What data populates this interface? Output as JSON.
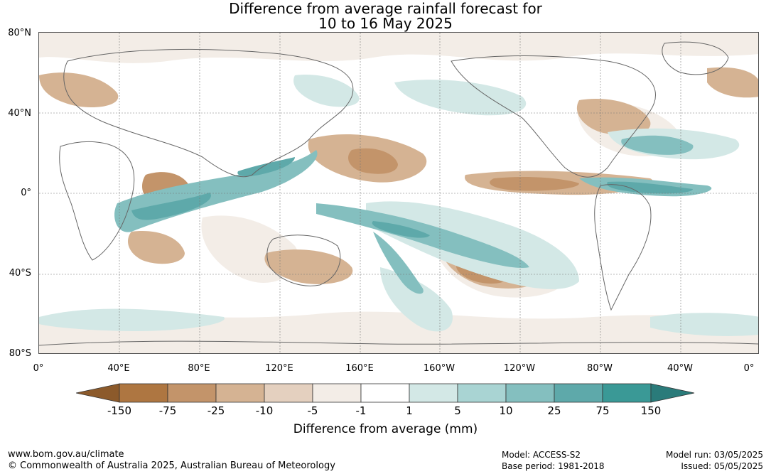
{
  "title_line1": "Difference from average rainfall forecast for",
  "title_line2": "10 to 16 May 2025",
  "lat_labels": [
    "80°N",
    "40°N",
    "0°",
    "40°S",
    "80°S"
  ],
  "lon_labels": [
    "0°",
    "40°E",
    "80°E",
    "120°E",
    "160°E",
    "160°W",
    "120°W",
    "80°W",
    "40°W",
    "0°"
  ],
  "legend": {
    "title": "Difference from average (mm)",
    "ticks": [
      "-150",
      "-75",
      "-25",
      "-10",
      "-5",
      "-1",
      "1",
      "5",
      "10",
      "25",
      "75",
      "150"
    ],
    "colors": [
      "#8c5a2b",
      "#ae7641",
      "#c3946a",
      "#d5b393",
      "#e4d0bf",
      "#f3ede7",
      "#ffffff",
      "#d3e8e6",
      "#a9d4d3",
      "#84bfbf",
      "#5ea9aa",
      "#3a9996",
      "#2a7b7a"
    ]
  },
  "footer": {
    "url": "www.bom.gov.au/climate",
    "copyright": "© Commonwealth of Australia 2025, Australian Bureau of Meteorology",
    "model": "Model: ACCESS-S2",
    "base_period": "Base period: 1981-2018",
    "model_run": "Model run: 03/05/2025",
    "issued": "Issued: 05/05/2025"
  }
}
